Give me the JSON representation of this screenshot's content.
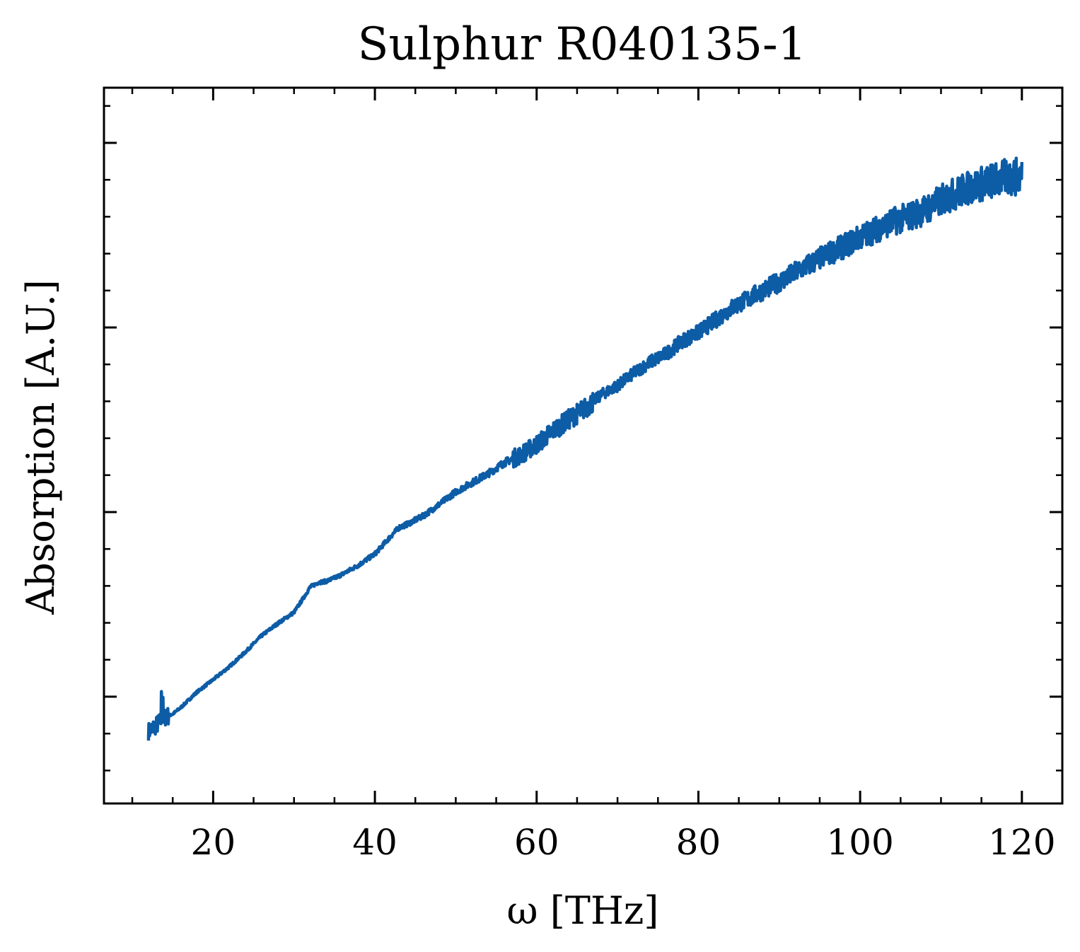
{
  "chart_data": {
    "type": "line",
    "title": "Sulphur R040135-1",
    "xlabel": "ω [THz]",
    "ylabel": "Absorption [A.U.]",
    "xlim": [
      6.5,
      125
    ],
    "ylim": [
      0,
      1
    ],
    "xticks": [
      20,
      40,
      60,
      80,
      100,
      120
    ],
    "xtick_labels": [
      "20",
      "40",
      "60",
      "80",
      "100",
      "120"
    ],
    "ytick_labels_shown": false,
    "grid": false,
    "legend": "none",
    "line_color": "#0d5ca6",
    "series": [
      {
        "x": [
          12,
          13,
          14,
          15,
          16,
          18,
          20,
          22,
          24,
          26,
          28,
          30,
          31,
          32,
          33,
          34,
          35,
          36,
          38,
          40,
          42,
          43,
          44,
          46,
          48,
          50,
          52,
          54,
          56,
          58,
          60,
          62,
          64,
          66,
          68,
          70,
          72,
          74,
          76,
          78,
          80,
          82,
          84,
          86,
          88,
          90,
          92,
          94,
          96,
          98,
          100,
          102,
          104,
          106,
          108,
          110,
          112,
          114,
          116,
          118,
          120
        ],
        "y": [
          0.063,
          0.073,
          0.085,
          0.09,
          0.1,
          0.124,
          0.143,
          0.163,
          0.186,
          0.211,
          0.23,
          0.247,
          0.266,
          0.286,
          0.293,
          0.295,
          0.3,
          0.306,
          0.32,
          0.337,
          0.365,
          0.378,
          0.383,
          0.396,
          0.414,
          0.433,
          0.447,
          0.461,
          0.478,
          0.49,
          0.506,
          0.527,
          0.545,
          0.562,
          0.583,
          0.597,
          0.616,
          0.633,
          0.646,
          0.666,
          0.679,
          0.697,
          0.716,
          0.73,
          0.744,
          0.757,
          0.772,
          0.786,
          0.8,
          0.812,
          0.826,
          0.838,
          0.85,
          0.858,
          0.868,
          0.883,
          0.895,
          0.905,
          0.912,
          0.918,
          0.92
        ]
      }
    ]
  }
}
